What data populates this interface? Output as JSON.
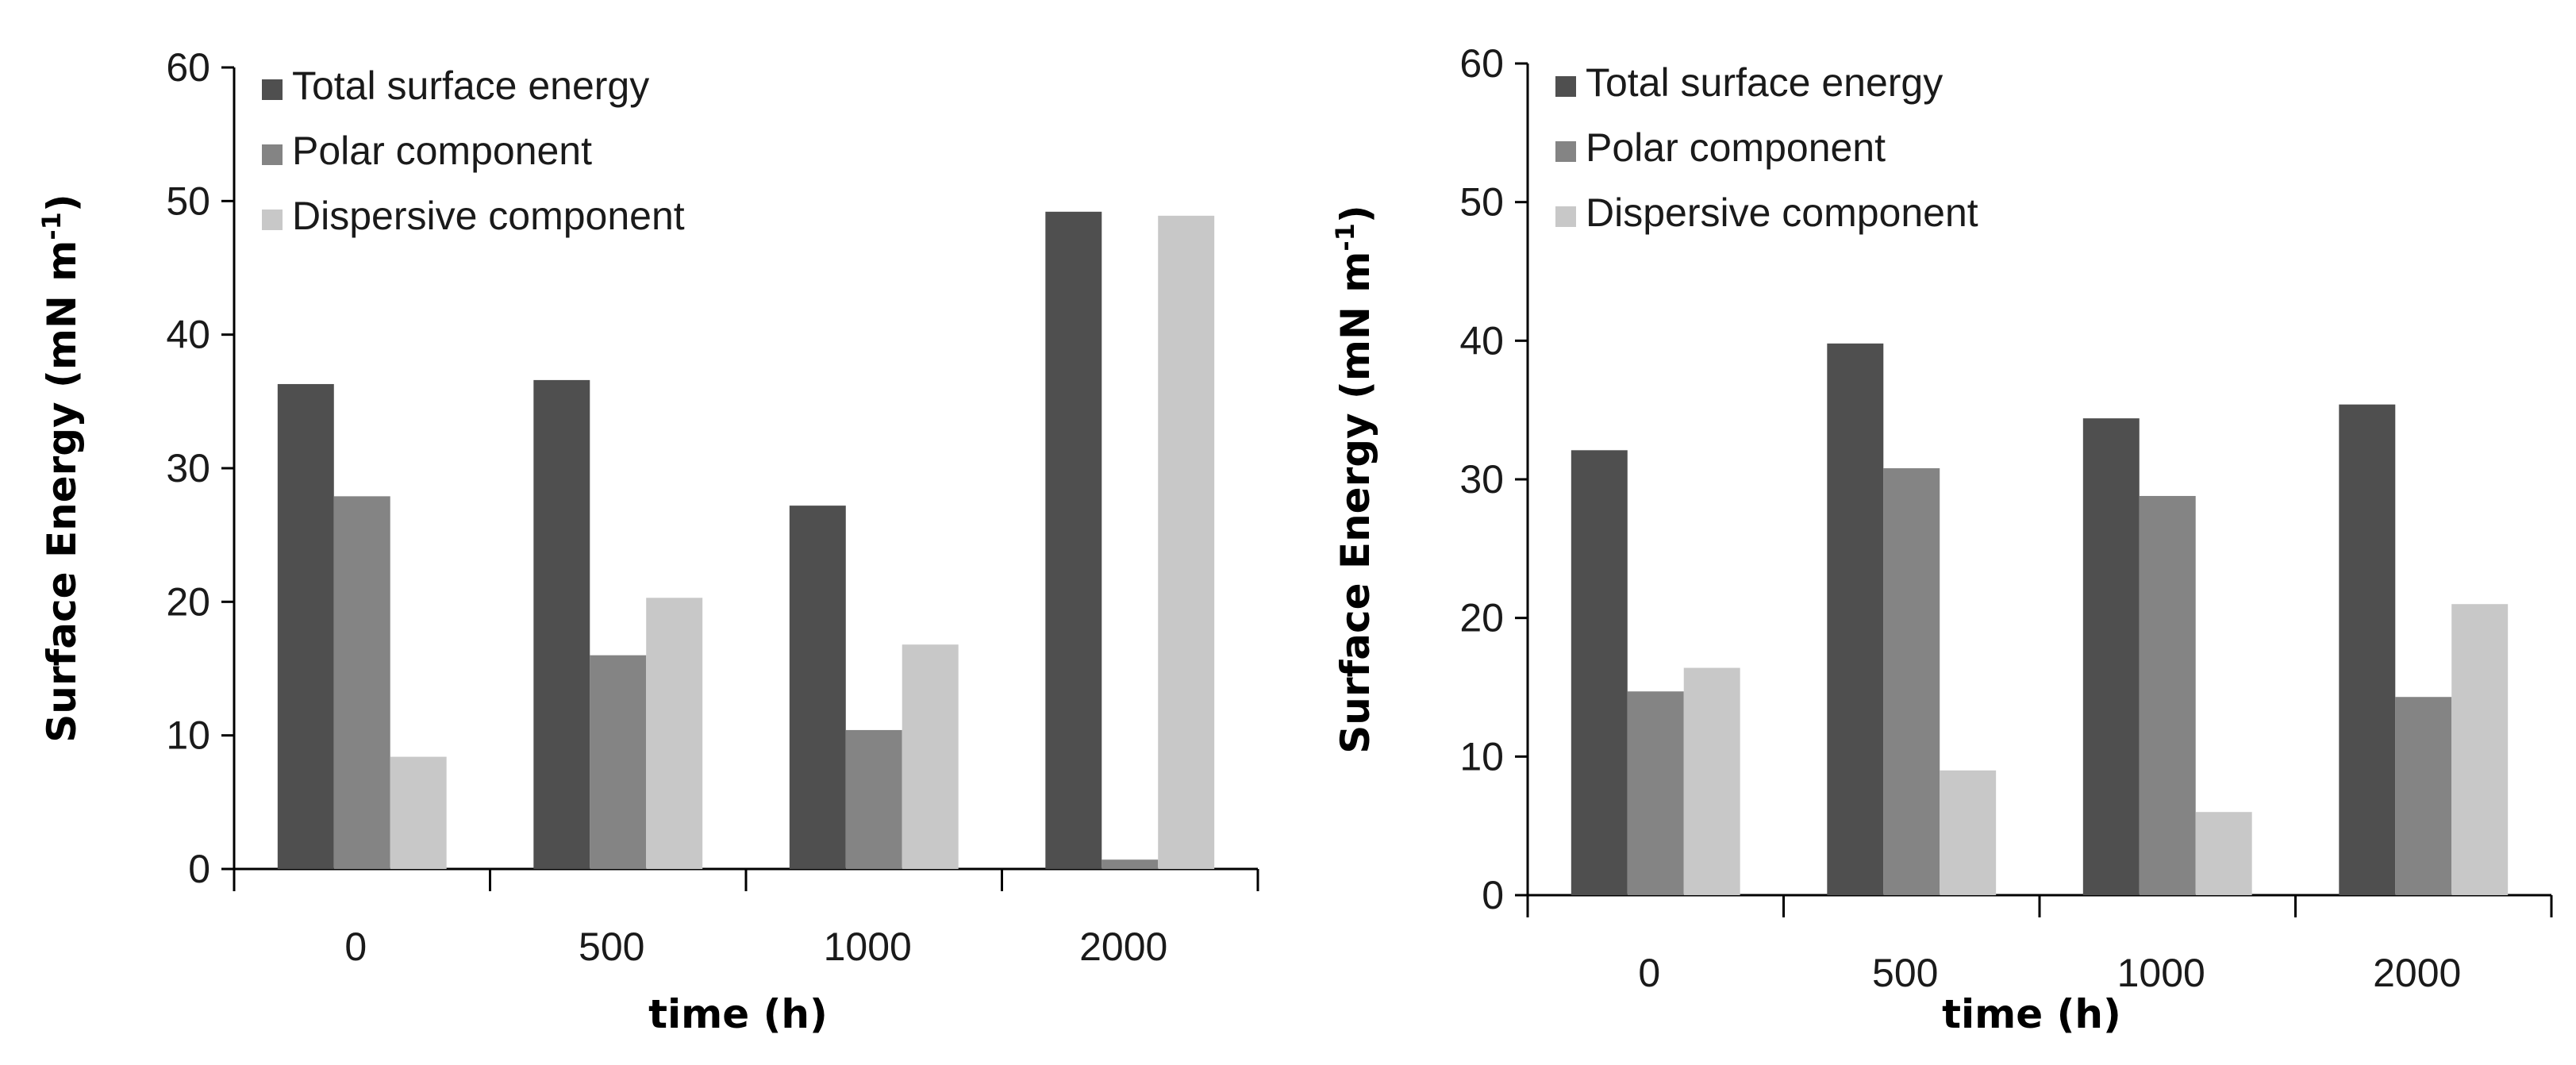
{
  "chart_data": [
    {
      "type": "bar",
      "categories": [
        "0",
        "500",
        "1000",
        "2000"
      ],
      "series": [
        {
          "name": "Total surface energy",
          "values": [
            36.3,
            36.6,
            27.2,
            49.2
          ]
        },
        {
          "name": "Polar component",
          "values": [
            27.9,
            16.0,
            10.4,
            0.7
          ]
        },
        {
          "name": "Dispersive component",
          "values": [
            8.4,
            20.3,
            16.8,
            48.9
          ]
        }
      ],
      "title": "",
      "xlabel": "time (h)",
      "ylabel": "Surface Energy (mN m",
      "ylabel_sup": "-1",
      "ylabel_close": ")",
      "ylim": [
        0,
        60
      ],
      "yticks": [
        "0",
        "10",
        "20",
        "30",
        "40",
        "50",
        "60"
      ],
      "legend_position": "top-left"
    },
    {
      "type": "bar",
      "categories": [
        "0",
        "500",
        "1000",
        "2000"
      ],
      "series": [
        {
          "name": "Total surface energy",
          "values": [
            32.1,
            39.8,
            34.4,
            35.4
          ]
        },
        {
          "name": "Polar component",
          "values": [
            14.7,
            30.8,
            28.8,
            14.3
          ]
        },
        {
          "name": "Dispersive component",
          "values": [
            16.4,
            9.0,
            6.0,
            21.0
          ]
        }
      ],
      "title": "",
      "xlabel": "time (h)",
      "ylabel": "Surface Energy (mN m",
      "ylabel_sup": "-1",
      "ylabel_close": ")",
      "ylim": [
        0,
        60
      ],
      "yticks": [
        "0",
        "10",
        "20",
        "30",
        "40",
        "50",
        "60"
      ],
      "legend_position": "top-left"
    }
  ],
  "colors": {
    "series": [
      "#4f4f4f",
      "#848484",
      "#c8c8c8"
    ],
    "axis": "#000000"
  }
}
